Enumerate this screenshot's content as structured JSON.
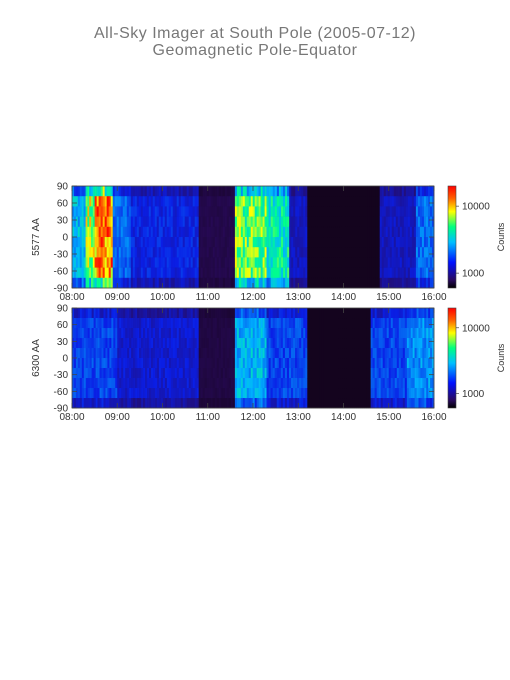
{
  "title": {
    "line1": "All-Sky Imager at South Pole (2005-07-12)",
    "line2": "Geomagnetic Pole-Equator"
  },
  "colors": {
    "low": "#1a0a40",
    "mid": "#0060ff",
    "high": "#ff2000",
    "axis": "#444444"
  },
  "chart_data": [
    {
      "type": "heatmap",
      "ylabel": "5577 AA",
      "colorbar_label": "Counts",
      "colorbar_ticks": [
        {
          "label": "1000",
          "value": 1000
        },
        {
          "label": "10000",
          "value": 10000
        }
      ],
      "colorbar_range": [
        600,
        20000
      ],
      "colorbar_scale": "log",
      "x_ticks": [
        "08:00",
        "09:00",
        "10:00",
        "11:00",
        "12:00",
        "13:00",
        "14:00",
        "15:00",
        "16:00"
      ],
      "x_range_hours": [
        8,
        16
      ],
      "y_ticks": [
        90,
        60,
        30,
        0,
        -30,
        -60,
        -90
      ],
      "y_range": [
        -90,
        90
      ],
      "bands": [
        {
          "start": 8.0,
          "end": 8.3,
          "intensity": 0.45
        },
        {
          "start": 8.3,
          "end": 8.5,
          "intensity": 0.7
        },
        {
          "start": 8.5,
          "end": 8.9,
          "intensity": 0.85
        },
        {
          "start": 8.9,
          "end": 9.3,
          "intensity": 0.35
        },
        {
          "start": 9.3,
          "end": 10.8,
          "intensity": 0.25
        },
        {
          "start": 10.8,
          "end": 11.6,
          "intensity": 0.06
        },
        {
          "start": 11.6,
          "end": 12.3,
          "intensity": 0.65
        },
        {
          "start": 12.3,
          "end": 12.8,
          "intensity": 0.55
        },
        {
          "start": 12.8,
          "end": 13.2,
          "intensity": 0.2
        },
        {
          "start": 13.2,
          "end": 14.8,
          "intensity": 0.0
        },
        {
          "start": 14.8,
          "end": 15.6,
          "intensity": 0.2
        },
        {
          "start": 15.6,
          "end": 16.0,
          "intensity": 0.35
        }
      ]
    },
    {
      "type": "heatmap",
      "ylabel": "6300 AA",
      "colorbar_label": "Counts",
      "colorbar_ticks": [
        {
          "label": "1000",
          "value": 1000
        },
        {
          "label": "10000",
          "value": 10000
        }
      ],
      "colorbar_range": [
        600,
        20000
      ],
      "colorbar_scale": "log",
      "x_ticks": [
        "08:00",
        "09:00",
        "10:00",
        "11:00",
        "12:00",
        "13:00",
        "14:00",
        "15:00",
        "16:00"
      ],
      "x_range_hours": [
        8,
        16
      ],
      "y_ticks": [
        90,
        60,
        30,
        0,
        -30,
        -60,
        -90
      ],
      "y_range": [
        -90,
        90
      ],
      "bands": [
        {
          "start": 8.0,
          "end": 9.0,
          "intensity": 0.3
        },
        {
          "start": 9.0,
          "end": 10.8,
          "intensity": 0.22
        },
        {
          "start": 10.8,
          "end": 11.6,
          "intensity": 0.05
        },
        {
          "start": 11.6,
          "end": 12.3,
          "intensity": 0.45
        },
        {
          "start": 12.3,
          "end": 13.2,
          "intensity": 0.3
        },
        {
          "start": 13.2,
          "end": 14.6,
          "intensity": 0.0
        },
        {
          "start": 14.6,
          "end": 15.4,
          "intensity": 0.3
        },
        {
          "start": 15.4,
          "end": 16.0,
          "intensity": 0.4
        }
      ]
    }
  ]
}
